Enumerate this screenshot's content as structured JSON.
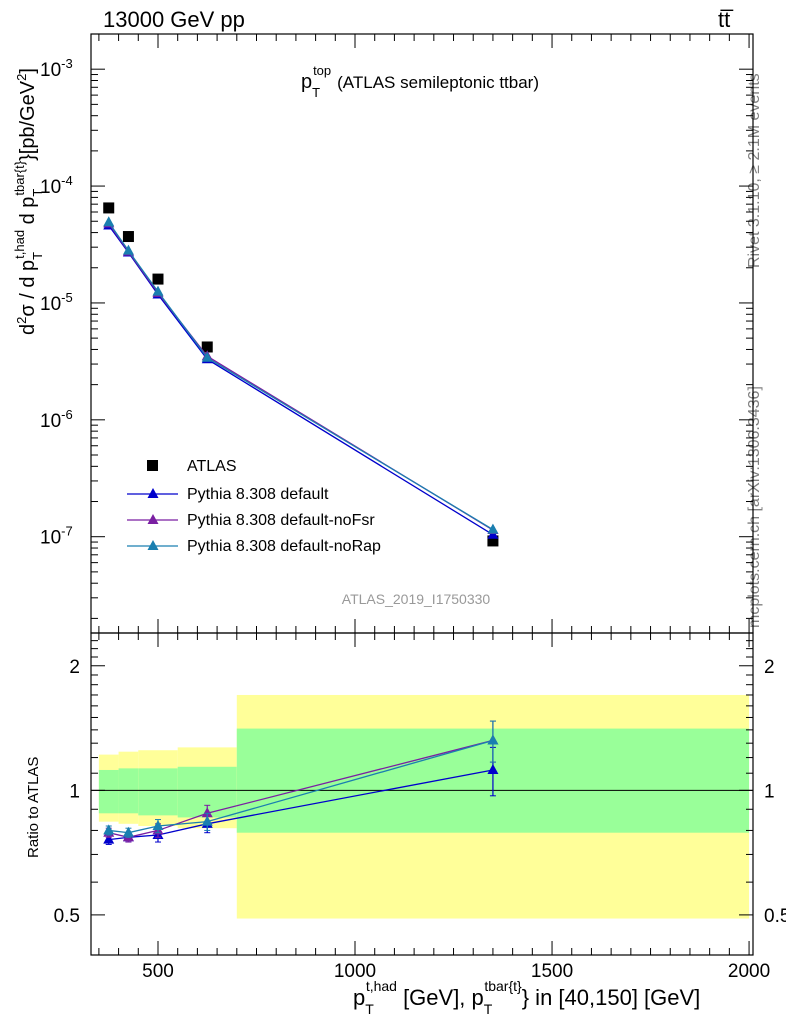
{
  "header": {
    "energy_label": "13000 GeV pp",
    "process_label": "tt̅"
  },
  "side_labels": {
    "rivet": "Rivet 3.1.10, ≥ 2.1M events",
    "mcplots": "mcplots.cern.ch [arXiv:1306.3436]"
  },
  "chart_data": [
    {
      "type": "line",
      "title": "p_T^top (ATLAS semileptonic ttbar)",
      "ylabel": "d²σ / d p_T^{t,had} d p_T^{tbar{t}}[pb/GeV²]",
      "xlabel": "",
      "yscale": "log",
      "xlim": [
        330,
        2010
      ],
      "ylim": [
        1.5e-08,
        0.002
      ],
      "ytick_labels": [
        "10^-7",
        "10^-6",
        "10^-5",
        "10^-4",
        "10^-3"
      ],
      "watermark": "ATLAS_2019_I1750330",
      "legend_position": "lower-left",
      "series": [
        {
          "name": "ATLAS",
          "color": "#000000",
          "marker": "square",
          "x": [
            375,
            425,
            500,
            625,
            1350
          ],
          "y": [
            6.5e-05,
            3.7e-05,
            1.6e-05,
            4.2e-06,
            9.2e-08
          ]
        },
        {
          "name": "Pythia 8.308 default",
          "color": "#0000cc",
          "marker": "triangle",
          "x": [
            375,
            425,
            500,
            625,
            1350
          ],
          "y": [
            4.6e-05,
            2.7e-05,
            1.18e-05,
            3.3e-06,
            1.04e-07
          ]
        },
        {
          "name": "Pythia 8.308 default-noFsr",
          "color": "#7a1fa2",
          "marker": "triangle",
          "x": [
            375,
            425,
            500,
            625,
            1350
          ],
          "y": [
            4.8e-05,
            2.75e-05,
            1.22e-05,
            3.5e-06,
            1.14e-07
          ]
        },
        {
          "name": "Pythia 8.308 default-noRap",
          "color": "#1a7fb0",
          "marker": "triangle",
          "x": [
            375,
            425,
            500,
            625,
            1350
          ],
          "y": [
            4.9e-05,
            2.8e-05,
            1.25e-05,
            3.4e-06,
            1.15e-07
          ]
        }
      ]
    },
    {
      "type": "line",
      "ylabel": "Ratio to ATLAS",
      "xlabel": "p_T^{t,had} [GeV], p_T^{tbar{t}} in [40,150] [GeV]",
      "xlim": [
        330,
        2010
      ],
      "ylim": [
        0.4,
        2.4
      ],
      "xtick_labels": [
        "500",
        "1000",
        "1500",
        "2000"
      ],
      "ytick_labels": [
        "0.5",
        "1",
        "2"
      ],
      "reference_line": 1,
      "bands": {
        "edges": [
          350,
          400,
          450,
          550,
          700,
          2000
        ],
        "outer_low": [
          0.84,
          0.83,
          0.82,
          0.81,
          0.49
        ],
        "outer_high": [
          1.22,
          1.24,
          1.25,
          1.27,
          1.7
        ],
        "inner_low": [
          0.88,
          0.88,
          0.87,
          0.86,
          0.79
        ],
        "inner_high": [
          1.12,
          1.13,
          1.13,
          1.14,
          1.41
        ],
        "inner_color": "#99ff99",
        "outer_color": "#ffff99"
      },
      "series": [
        {
          "name": "Pythia 8.308 default",
          "color": "#0000cc",
          "x": [
            375,
            425,
            500,
            625,
            1350
          ],
          "y": [
            0.76,
            0.77,
            0.78,
            0.83,
            1.12
          ],
          "err": [
            0.02,
            0.02,
            0.03,
            0.04,
            0.15
          ]
        },
        {
          "name": "Pythia 8.308 default-noFsr",
          "color": "#7a1fa2",
          "x": [
            375,
            425,
            500,
            625,
            1350
          ],
          "y": [
            0.79,
            0.77,
            0.8,
            0.88,
            1.32
          ],
          "err": [
            0.02,
            0.02,
            0.03,
            0.04,
            0.15
          ]
        },
        {
          "name": "Pythia 8.308 default-noRap",
          "color": "#1a7fb0",
          "x": [
            375,
            425,
            500,
            625,
            1350
          ],
          "y": [
            0.8,
            0.79,
            0.82,
            0.84,
            1.32
          ],
          "err": [
            0.02,
            0.02,
            0.03,
            0.04,
            0.15
          ]
        }
      ]
    }
  ]
}
